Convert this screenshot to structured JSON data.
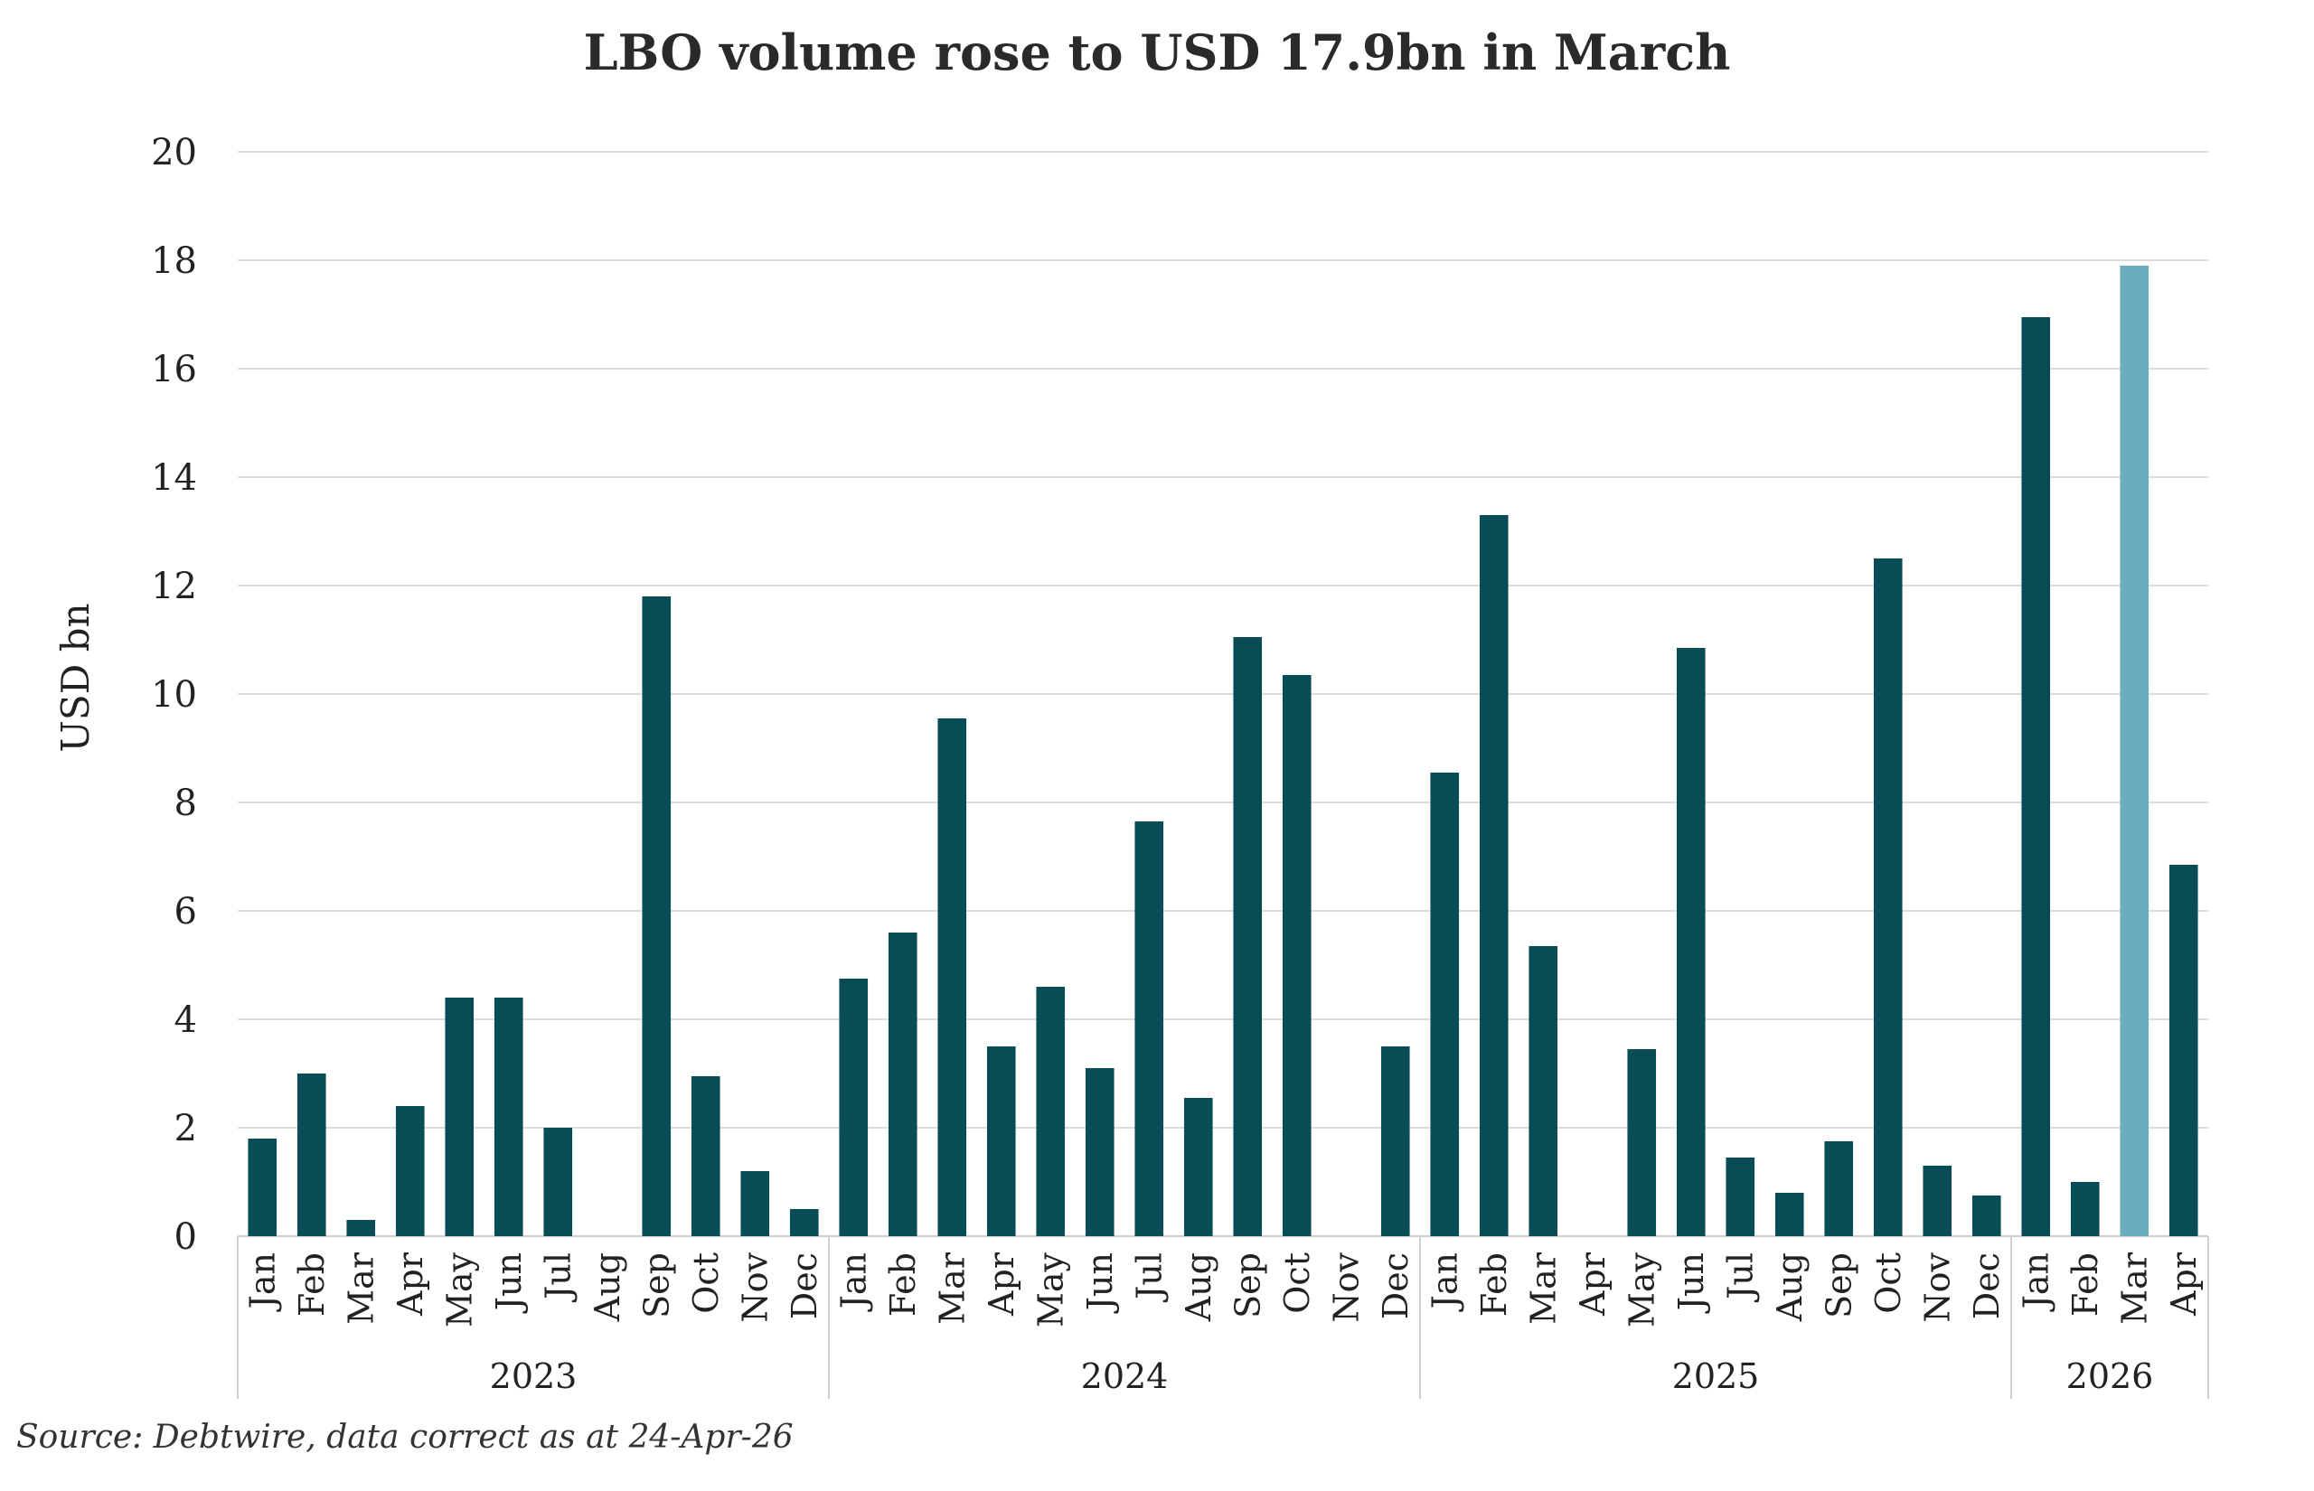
{
  "chart_data": {
    "type": "bar",
    "title": "LBO volume rose to USD 17.9bn in March",
    "ylabel": "USD bn",
    "xlabel": "",
    "ylim": [
      0,
      20
    ],
    "yticks": [
      0,
      2,
      4,
      6,
      8,
      10,
      12,
      14,
      16,
      18,
      20
    ],
    "grid": true,
    "legend": "none",
    "year_groups": [
      {
        "year": "2023",
        "months": [
          "Jan",
          "Feb",
          "Mar",
          "Apr",
          "May",
          "Jun",
          "Jul",
          "Aug",
          "Sep",
          "Oct",
          "Nov",
          "Dec"
        ],
        "values": [
          1.8,
          3.0,
          0.3,
          2.4,
          4.4,
          4.4,
          2.0,
          0,
          11.8,
          2.95,
          1.2,
          0.5
        ]
      },
      {
        "year": "2024",
        "months": [
          "Jan",
          "Feb",
          "Mar",
          "Apr",
          "May",
          "Jun",
          "Jul",
          "Aug",
          "Sep",
          "Oct",
          "Nov",
          "Dec"
        ],
        "values": [
          4.75,
          5.6,
          9.55,
          3.5,
          4.6,
          3.1,
          7.65,
          2.55,
          11.05,
          10.35,
          0,
          3.5
        ]
      },
      {
        "year": "2025",
        "months": [
          "Jan",
          "Feb",
          "Mar",
          "Apr",
          "May",
          "Jun",
          "Jul",
          "Aug",
          "Sep",
          "Oct",
          "Nov",
          "Dec"
        ],
        "values": [
          8.55,
          13.3,
          5.35,
          0,
          3.45,
          10.85,
          1.45,
          0.8,
          1.75,
          12.5,
          1.3,
          0.75
        ]
      },
      {
        "year": "2026",
        "months": [
          "Jan",
          "Feb",
          "Mar",
          "Apr"
        ],
        "values": [
          16.95,
          1.0,
          17.9,
          6.85
        ]
      }
    ],
    "bar_color": "#084c56",
    "highlight_color": "#6badbc",
    "highlight": {
      "year": "2026",
      "month": "Mar"
    }
  },
  "source": "Source: Debtwire, data correct as at 24-Apr-26"
}
